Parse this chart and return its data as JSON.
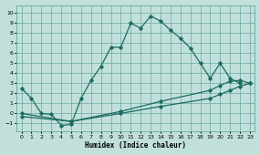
{
  "title": "",
  "xlabel": "Humidex (Indice chaleur)",
  "xlim": [
    -0.5,
    23.5
  ],
  "ylim": [
    -1.8,
    10.8
  ],
  "xticks": [
    0,
    1,
    2,
    3,
    4,
    5,
    6,
    7,
    8,
    9,
    10,
    11,
    12,
    13,
    14,
    15,
    16,
    17,
    18,
    19,
    20,
    21,
    22,
    23
  ],
  "yticks": [
    -1,
    0,
    1,
    2,
    3,
    4,
    5,
    6,
    7,
    8,
    9,
    10
  ],
  "bg_color": "#c2e0db",
  "grid_color": "#68a89e",
  "line_color": "#1b6b62",
  "line1_x": [
    0,
    1,
    2,
    3,
    4,
    5,
    6,
    7,
    8,
    9,
    10,
    11,
    12,
    13,
    14,
    15,
    16,
    17,
    18,
    19,
    20,
    21,
    22
  ],
  "line1_y": [
    2.5,
    1.5,
    0.0,
    -0.1,
    -1.2,
    -1.1,
    1.5,
    3.3,
    4.7,
    6.6,
    6.6,
    9.0,
    8.5,
    9.7,
    9.2,
    8.3,
    7.5,
    6.5,
    5.0,
    3.5,
    5.0,
    3.5,
    3.0
  ],
  "line2_x": [
    0,
    5,
    10,
    14,
    19,
    20,
    21,
    22,
    23
  ],
  "line2_y": [
    0.0,
    -0.8,
    0.2,
    1.2,
    2.3,
    2.8,
    3.2,
    3.3,
    3.0
  ],
  "line3_x": [
    0,
    5,
    10,
    14,
    19,
    20,
    21,
    22,
    23
  ],
  "line3_y": [
    -0.3,
    -0.8,
    0.0,
    0.7,
    1.5,
    1.9,
    2.3,
    2.7,
    3.0
  ]
}
